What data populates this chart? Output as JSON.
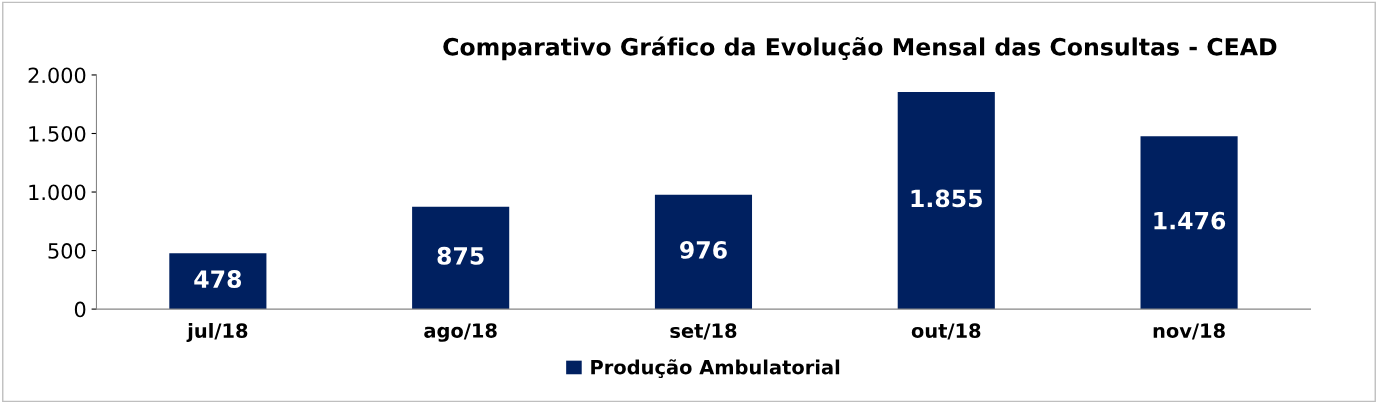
{
  "chart_data": {
    "type": "bar",
    "title": "Comparativo Gráfico da Evolução Mensal das Consultas - CEAD",
    "categories": [
      "jul/18",
      "ago/18",
      "set/18",
      "out/18",
      "nov/18"
    ],
    "series": [
      {
        "name": "Produção Ambulatorial",
        "color": "#002060",
        "values": [
          478,
          875,
          976,
          1855,
          1476
        ],
        "value_labels": [
          "478",
          "875",
          "976",
          "1.855",
          "1.476"
        ]
      }
    ],
    "ylim": [
      0,
      2000
    ],
    "yticks": [
      0,
      500,
      {
        "value": 1000,
        "label": "1.000"
      },
      {
        "value": 1500,
        "label": "1.500"
      },
      {
        "value": 2000,
        "label": "2.000"
      }
    ],
    "grid": false,
    "legend": "bottom"
  }
}
